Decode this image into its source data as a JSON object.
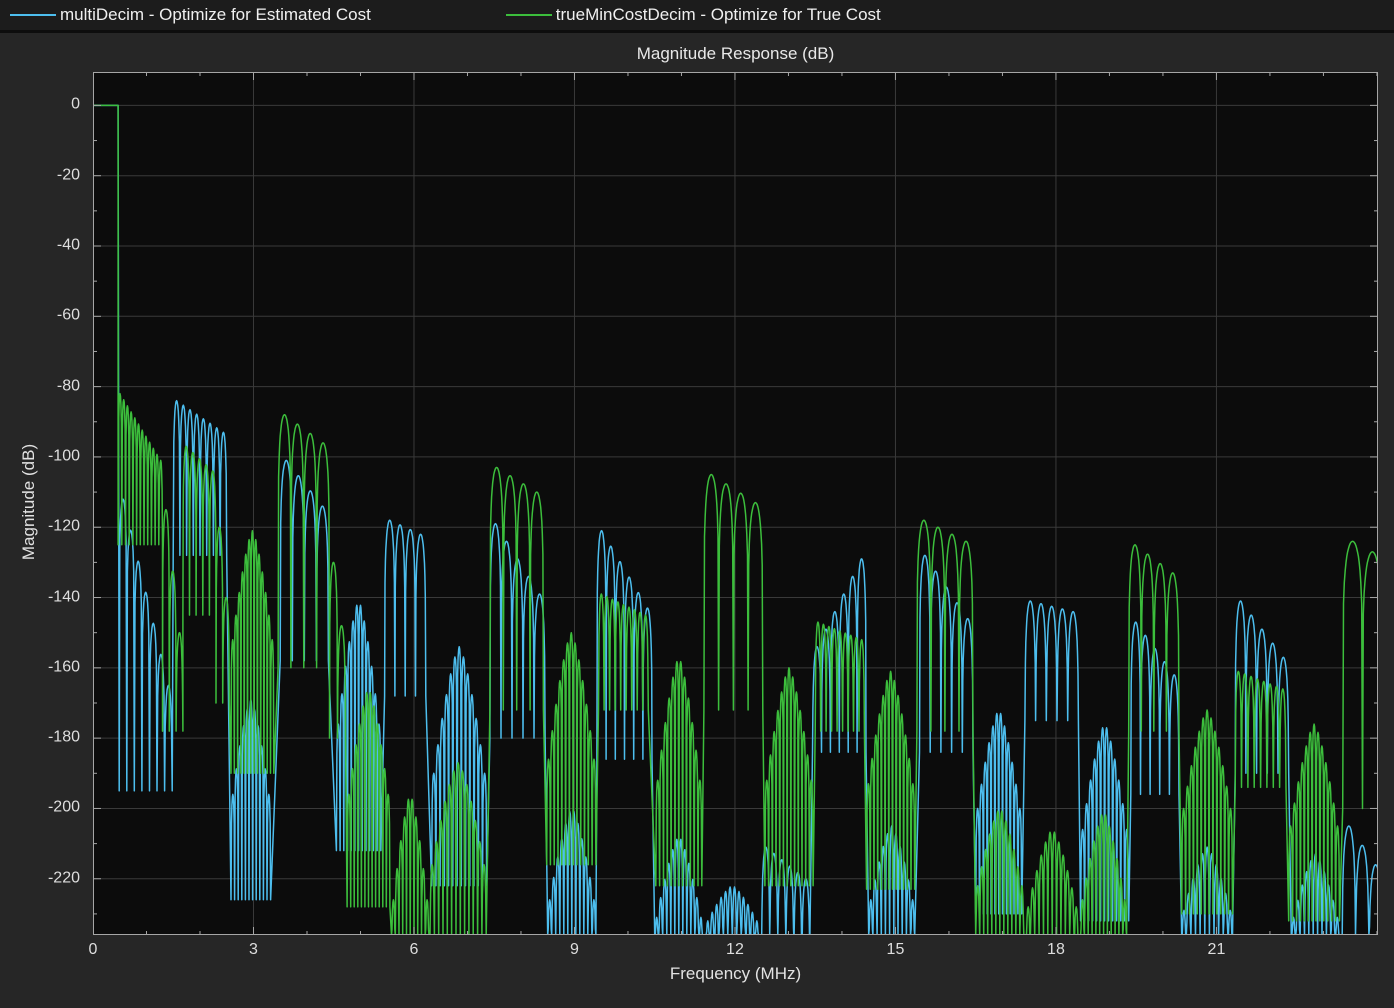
{
  "legend": {
    "items": [
      {
        "series_ref": 0
      },
      {
        "series_ref": 1
      }
    ]
  },
  "chart_data": {
    "type": "line",
    "title": "Magnitude Response (dB)",
    "xlabel": "Frequency (MHz)",
    "ylabel": "Magnitude (dB)",
    "xlim": [
      0,
      24.02
    ],
    "ylim": [
      -236,
      9.5
    ],
    "xticks": [
      0,
      3,
      6,
      9,
      12,
      15,
      18,
      21
    ],
    "yticks": [
      0,
      -20,
      -40,
      -60,
      -80,
      -100,
      -120,
      -140,
      -160,
      -180,
      -200,
      -220
    ],
    "x_minor_step": 1,
    "y_minor_step": 10,
    "grid": "major",
    "legend_position": "top",
    "plot_bg": "#0c0c0c",
    "figure_bg": "#262626",
    "grid_color": "#3a3a3a",
    "frame_color": "#a6a6a6",
    "text_color": "#e2e2e2",
    "series": [
      {
        "name": "multiDecim - Optimize for Estimated Cost",
        "color": "#4dbeee",
        "passband_edge_mhz": 0.47,
        "passband_db": 0,
        "segments": [
          {
            "t": "flat",
            "f0": 0,
            "f1": 0.47,
            "db": 0
          },
          {
            "t": "lobes",
            "f0": 0.49,
            "f1": 1.48,
            "n": 7,
            "p0": -112,
            "p1": -165,
            "fl": -195
          },
          {
            "t": "lobes",
            "f0": 1.5,
            "f1": 2.5,
            "n": 8,
            "p0": -84,
            "p1": -93,
            "fl": -128
          },
          {
            "t": "bell",
            "f0": 2.58,
            "f1": 3.32,
            "n": 11,
            "p0": -196,
            "pm": -169,
            "fl": -226
          },
          {
            "t": "lobes",
            "f0": 3.5,
            "f1": 4.4,
            "n": 4,
            "p0": -101,
            "p1": -114,
            "fl": -158
          },
          {
            "t": "bell",
            "f0": 4.55,
            "f1": 5.38,
            "n": 12,
            "p0": -176,
            "pm": -141,
            "fl": -212
          },
          {
            "t": "lobes",
            "f0": 5.45,
            "f1": 6.22,
            "n": 4,
            "p0": -118,
            "p1": -122,
            "fl": -168
          },
          {
            "t": "bell",
            "f0": 6.33,
            "f1": 7.36,
            "n": 13,
            "p0": -190,
            "pm": -154,
            "fl": -222
          },
          {
            "t": "lobes",
            "f0": 7.42,
            "f1": 8.45,
            "n": 5,
            "p0": -119,
            "p1": -139,
            "fl": -180
          },
          {
            "t": "bell",
            "f0": 8.5,
            "f1": 9.4,
            "n": 12,
            "p0": -226,
            "pm": -200,
            "fl": -236
          },
          {
            "t": "lobes",
            "f0": 9.42,
            "f1": 10.45,
            "n": 6,
            "p0": -121,
            "p1": -143,
            "fl": -186
          },
          {
            "t": "bell",
            "f0": 10.5,
            "f1": 11.4,
            "n": 12,
            "p0": -231,
            "pm": -208,
            "fl": -236
          },
          {
            "t": "bell",
            "f0": 11.45,
            "f1": 12.45,
            "n": 12,
            "p0": -232,
            "pm": -222,
            "fl": -236
          },
          {
            "t": "lobes",
            "f0": 12.5,
            "f1": 13.4,
            "n": 6,
            "p0": -211,
            "p1": -220,
            "fl": -236
          },
          {
            "t": "lobes",
            "f0": 13.45,
            "f1": 14.45,
            "n": 6,
            "p0": -154,
            "p1": -129,
            "fl": -184
          },
          {
            "t": "bell",
            "f0": 14.5,
            "f1": 15.36,
            "n": 11,
            "p0": -226,
            "pm": -205,
            "fl": -236
          },
          {
            "t": "lobes",
            "f0": 15.45,
            "f1": 16.45,
            "n": 5,
            "p0": -128,
            "p1": -146,
            "fl": -184
          },
          {
            "t": "bell",
            "f0": 16.5,
            "f1": 17.36,
            "n": 12,
            "p0": -200,
            "pm": -172,
            "fl": -230
          },
          {
            "t": "lobes",
            "f0": 17.42,
            "f1": 18.42,
            "n": 5,
            "p0": -141,
            "p1": -144,
            "fl": -175
          },
          {
            "t": "bell",
            "f0": 18.46,
            "f1": 19.36,
            "n": 12,
            "p0": -206,
            "pm": -176,
            "fl": -232
          },
          {
            "t": "lobes",
            "f0": 19.4,
            "f1": 20.3,
            "n": 5,
            "p0": -147,
            "p1": -162,
            "fl": -196
          },
          {
            "t": "bell",
            "f0": 20.35,
            "f1": 21.3,
            "n": 11,
            "p0": -229,
            "pm": -211,
            "fl": -236
          },
          {
            "t": "lobes",
            "f0": 21.35,
            "f1": 22.35,
            "n": 5,
            "p0": -141,
            "p1": -157,
            "fl": -190
          },
          {
            "t": "bell",
            "f0": 22.4,
            "f1": 23.3,
            "n": 11,
            "p0": -231,
            "pm": -213,
            "fl": -236
          },
          {
            "t": "lobes",
            "f0": 23.35,
            "f1": 24.1,
            "n": 3,
            "p0": -205,
            "p1": -216,
            "fl": -236
          }
        ]
      },
      {
        "name": "trueMinCostDecim - Optimize for True Cost",
        "color": "#3cbe3c",
        "passband_edge_mhz": 0.47,
        "passband_db": 0,
        "segments": [
          {
            "t": "flat",
            "f0": 0,
            "f1": 0.47,
            "db": 0
          },
          {
            "t": "lobes",
            "f0": 0.47,
            "f1": 1.3,
            "n": 12,
            "p0": -82,
            "p1": -101,
            "fl": -125
          },
          {
            "t": "lobes",
            "f0": 1.3,
            "f1": 1.68,
            "n": 3,
            "p0": -115,
            "p1": -150,
            "fl": -178
          },
          {
            "t": "lobes",
            "f0": 1.68,
            "f1": 2.3,
            "n": 5,
            "p0": -97,
            "p1": -104,
            "fl": -145
          },
          {
            "t": "lobes",
            "f0": 2.3,
            "f1": 2.55,
            "n": 2,
            "p0": -120,
            "p1": -140,
            "fl": -170
          },
          {
            "t": "bell",
            "f0": 2.58,
            "f1": 3.38,
            "n": 13,
            "p0": -152,
            "pm": -121,
            "fl": -190
          },
          {
            "t": "lobes",
            "f0": 3.46,
            "f1": 4.42,
            "n": 4,
            "p0": -88,
            "p1": -96,
            "fl": -160
          },
          {
            "t": "lobes",
            "f0": 4.42,
            "f1": 4.72,
            "n": 2,
            "p0": -130,
            "p1": -148,
            "fl": -180
          },
          {
            "t": "bell",
            "f0": 4.75,
            "f1": 5.55,
            "n": 12,
            "p0": -196,
            "pm": -166,
            "fl": -228
          },
          {
            "t": "bell",
            "f0": 5.58,
            "f1": 6.28,
            "n": 10,
            "p0": -226,
            "pm": -196,
            "fl": -236
          },
          {
            "t": "bell",
            "f0": 6.3,
            "f1": 7.35,
            "n": 13,
            "p0": -216,
            "pm": -187,
            "fl": -236
          },
          {
            "t": "lobes",
            "f0": 7.42,
            "f1": 8.42,
            "n": 4,
            "p0": -103,
            "p1": -110,
            "fl": -172
          },
          {
            "t": "bell",
            "f0": 8.48,
            "f1": 9.4,
            "n": 13,
            "p0": -186,
            "pm": -150,
            "fl": -216
          },
          {
            "t": "lobes",
            "f0": 9.45,
            "f1": 10.38,
            "n": 9,
            "p0": -139,
            "p1": -145,
            "fl": -172
          },
          {
            "t": "bell",
            "f0": 10.52,
            "f1": 11.38,
            "n": 12,
            "p0": -192,
            "pm": -157,
            "fl": -222
          },
          {
            "t": "lobes",
            "f0": 11.42,
            "f1": 12.52,
            "n": 4,
            "p0": -105,
            "p1": -113,
            "fl": -172
          },
          {
            "t": "bell",
            "f0": 12.56,
            "f1": 13.46,
            "n": 13,
            "p0": -192,
            "pm": -160,
            "fl": -222
          },
          {
            "t": "lobes",
            "f0": 13.5,
            "f1": 14.42,
            "n": 9,
            "p0": -147,
            "p1": -152,
            "fl": -178
          },
          {
            "t": "bell",
            "f0": 14.46,
            "f1": 15.36,
            "n": 13,
            "p0": -193,
            "pm": -161,
            "fl": -223
          },
          {
            "t": "lobes",
            "f0": 15.4,
            "f1": 16.45,
            "n": 4,
            "p0": -118,
            "p1": -124,
            "fl": -178
          },
          {
            "t": "bell",
            "f0": 16.5,
            "f1": 17.4,
            "n": 12,
            "p0": -222,
            "pm": -200,
            "fl": -236
          },
          {
            "t": "bell",
            "f0": 17.44,
            "f1": 18.42,
            "n": 12,
            "p0": -228,
            "pm": -206,
            "fl": -236
          },
          {
            "t": "bell",
            "f0": 18.46,
            "f1": 19.32,
            "n": 12,
            "p0": -226,
            "pm": -201,
            "fl": -236
          },
          {
            "t": "lobes",
            "f0": 19.36,
            "f1": 20.3,
            "n": 4,
            "p0": -125,
            "p1": -133,
            "fl": -178
          },
          {
            "t": "bell",
            "f0": 20.35,
            "f1": 21.3,
            "n": 13,
            "p0": -200,
            "pm": -172,
            "fl": -230
          },
          {
            "t": "lobes",
            "f0": 21.35,
            "f1": 22.3,
            "n": 8,
            "p0": -161,
            "p1": -166,
            "fl": -194
          },
          {
            "t": "bell",
            "f0": 22.35,
            "f1": 23.3,
            "n": 13,
            "p0": -205,
            "pm": -176,
            "fl": -232
          },
          {
            "t": "lobes",
            "f0": 23.36,
            "f1": 24.1,
            "n": 2,
            "p0": -124,
            "p1": -127,
            "fl": -200
          }
        ]
      }
    ]
  }
}
